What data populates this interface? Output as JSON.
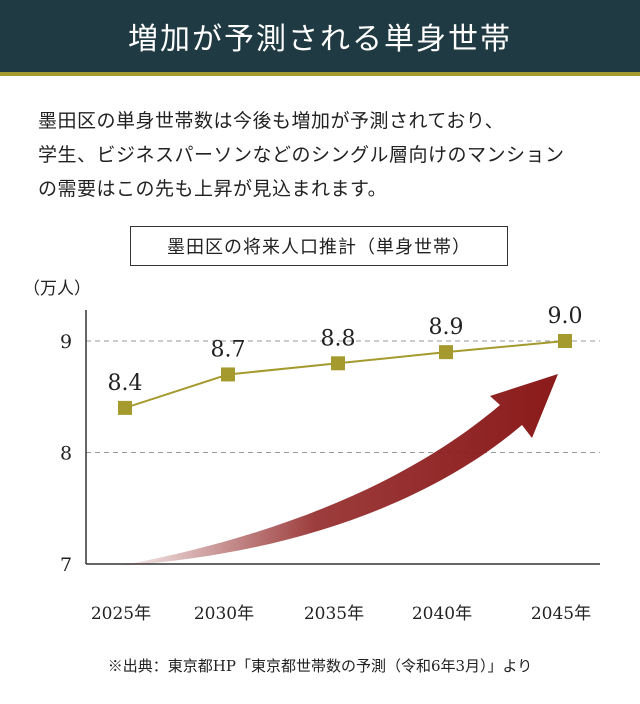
{
  "header": {
    "title": "増加が予測される単身世帯"
  },
  "intro": {
    "lines": [
      "墨田区の単身世帯数は今後も増加が予測されており、",
      "学生、ビジネスパーソンなどのシングル層向けのマンション",
      "の需要はこの先も上昇が見込まれます。"
    ]
  },
  "chart_data": {
    "type": "line",
    "title": "墨田区の将来人口推計（単身世帯）",
    "ylabel": "（万人）",
    "xlabel": "",
    "categories": [
      "2025年",
      "2030年",
      "2035年",
      "2040年",
      "2045年"
    ],
    "values": [
      8.4,
      8.7,
      8.8,
      8.9,
      9.0
    ],
    "data_labels": [
      "8.4",
      "8.7",
      "8.8",
      "8.9",
      "9.0"
    ],
    "yticks": [
      "7",
      "8",
      "9"
    ],
    "ylim": [
      7,
      9.25
    ],
    "grid": "horizontal dashed",
    "series_color": "#a59a2e",
    "arrow_color": "#8b1a1a"
  },
  "source": "※出典：東京都HP「東京都世帯数の予測（令和6年3月）」より",
  "colors": {
    "header_bg": "#1f3a42",
    "accent": "#a59a2e"
  }
}
